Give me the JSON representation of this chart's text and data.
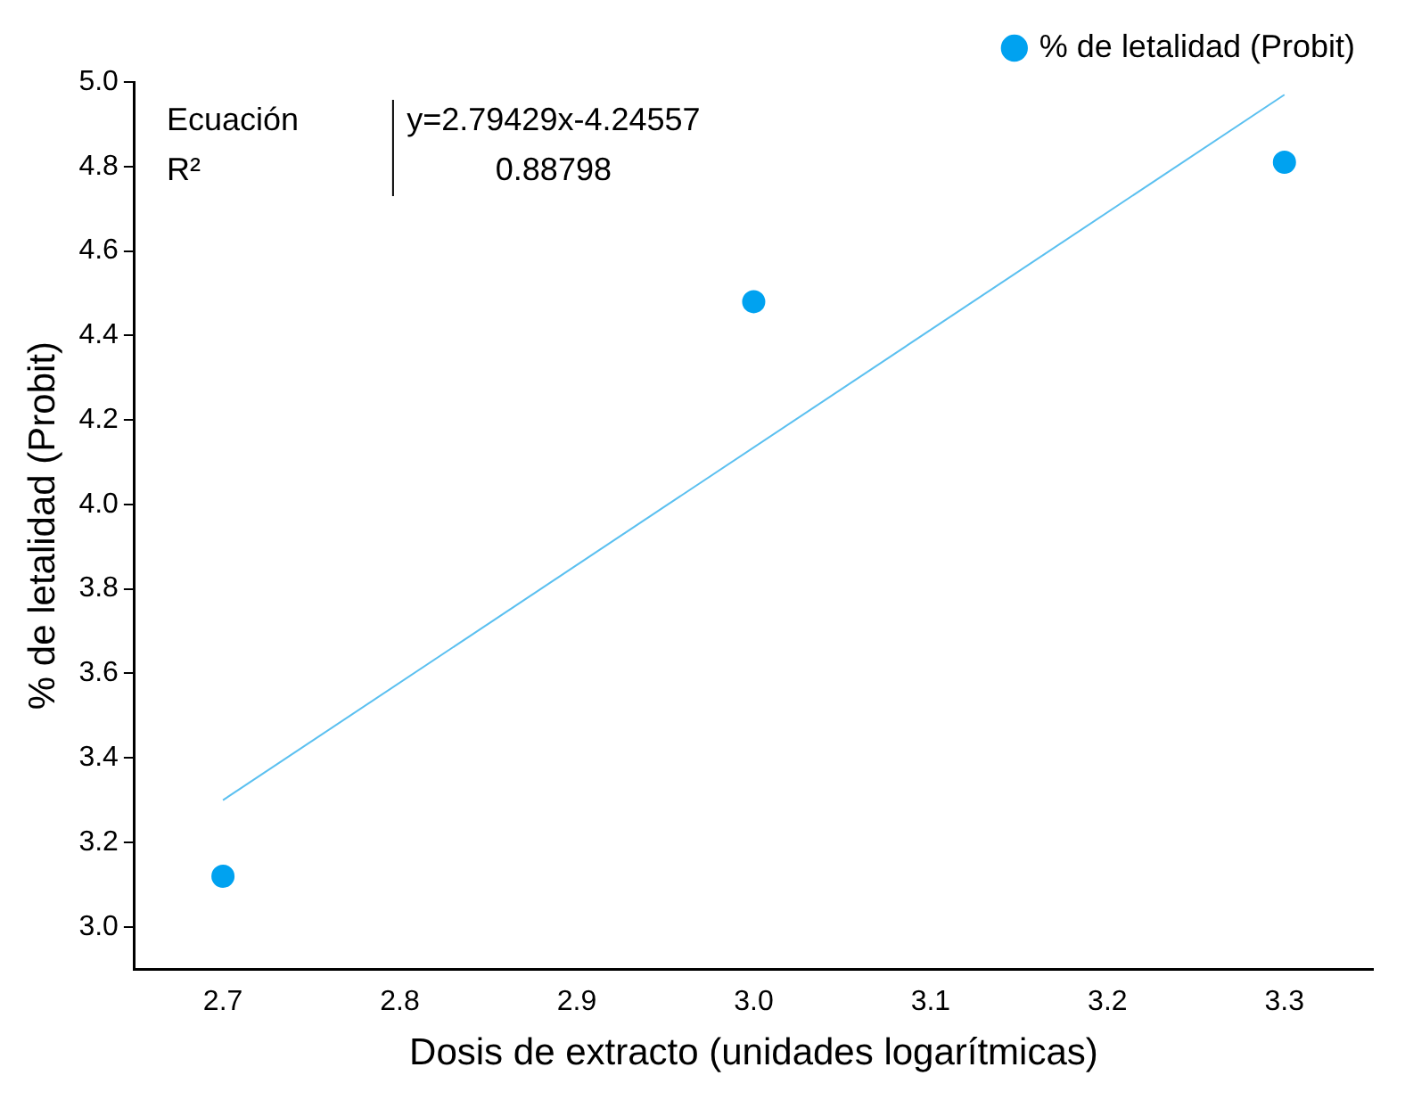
{
  "chart_data": {
    "type": "scatter",
    "xlabel": "Dosis de extracto (unidades logarítmicas)",
    "ylabel": "% de letalidad (Probit)",
    "series": [
      {
        "name": "% de letalidad (Probit)",
        "color": "#00a2f0",
        "x": [
          2.7,
          3.0,
          3.3
        ],
        "values": [
          3.12,
          4.48,
          4.81
        ]
      },
      {
        "type": "line",
        "marker": "none",
        "color": "#5bc0f0",
        "x": [
          2.7,
          3.3
        ],
        "values": [
          3.3,
          4.97
        ]
      }
    ],
    "annotations": [
      "Ecuación",
      "y=2.79429x-4.24557",
      "R²",
      "0.88798"
    ],
    "xlim": [
      2.65,
      3.35
    ],
    "xticks": [
      2.7,
      2.8,
      2.9,
      {
        "value": 3,
        "label": "3.0"
      },
      3.1,
      3.2,
      3.3
    ],
    "ylim": [
      2.9,
      5.0
    ],
    "yticks": [
      {
        "value": 3,
        "label": "3.0"
      },
      3.2,
      3.4,
      3.6,
      3.8,
      {
        "value": 4,
        "label": "4.0"
      },
      4.2,
      4.4,
      4.6,
      4.8,
      {
        "value": 5,
        "label": "5.0"
      }
    ],
    "grid": false,
    "legend": "top right",
    "marker": "circle"
  }
}
